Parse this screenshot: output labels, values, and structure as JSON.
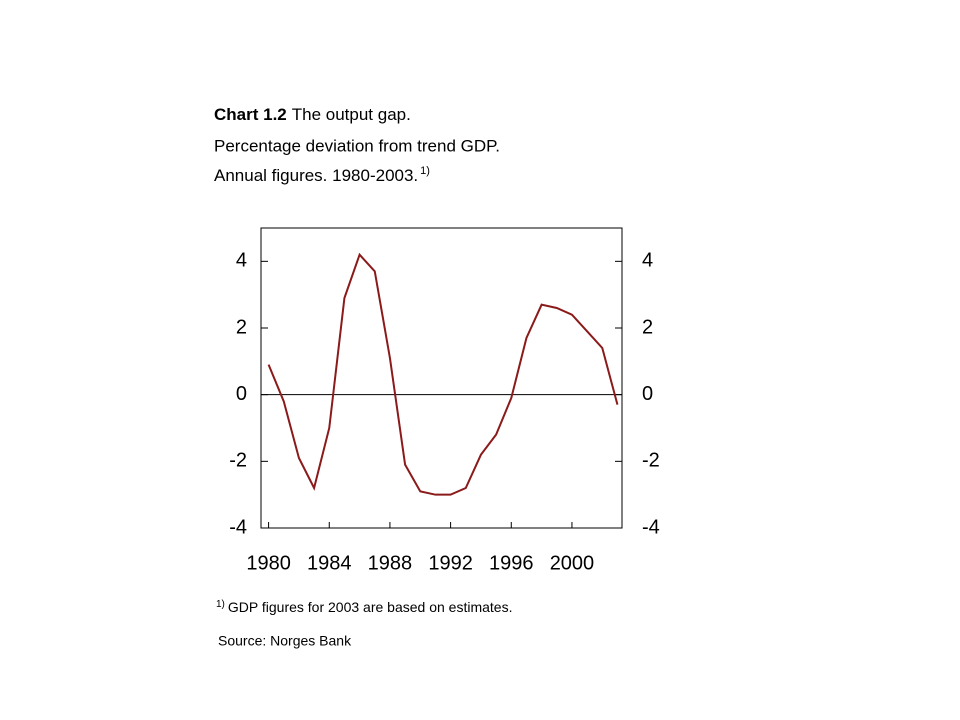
{
  "chart_data": {
    "type": "line",
    "title_bold": "Chart 1.2",
    "title": "The output gap.",
    "subtitle": [
      "Percentage deviation from trend GDP.",
      "Annual figures. 1980-2003."
    ],
    "subtitle_note_marker": "1)",
    "footnote_marker": "1)",
    "footnote": "GDP figures for 2003 are based on estimates.",
    "source": "Source: Norges Bank",
    "x": [
      1980,
      1981,
      1982,
      1983,
      1984,
      1985,
      1986,
      1987,
      1988,
      1989,
      1990,
      1991,
      1992,
      1993,
      1994,
      1995,
      1996,
      1997,
      1998,
      1999,
      2000,
      2001,
      2002,
      2003
    ],
    "series": [
      {
        "color": "#8b1a1a",
        "values": [
          0.9,
          -0.2,
          -1.9,
          -2.8,
          -1.0,
          2.9,
          4.2,
          3.7,
          1.1,
          -2.1,
          -2.9,
          -3.0,
          -3.0,
          -2.8,
          -1.8,
          -1.2,
          -0.1,
          1.7,
          2.7,
          2.6,
          2.4,
          1.9,
          1.4,
          -0.3
        ]
      }
    ],
    "xlim": [
      1979.5,
      2003.3
    ],
    "xticks": [
      1980,
      1984,
      1988,
      1992,
      1996,
      2000
    ],
    "ylim": [
      -4,
      5
    ],
    "yticks": [
      -4,
      -2,
      0,
      2,
      4
    ],
    "y2lim": [
      -4,
      5
    ],
    "y2ticks": [
      -4,
      -2,
      0,
      2,
      4
    ],
    "zero_line": true
  }
}
